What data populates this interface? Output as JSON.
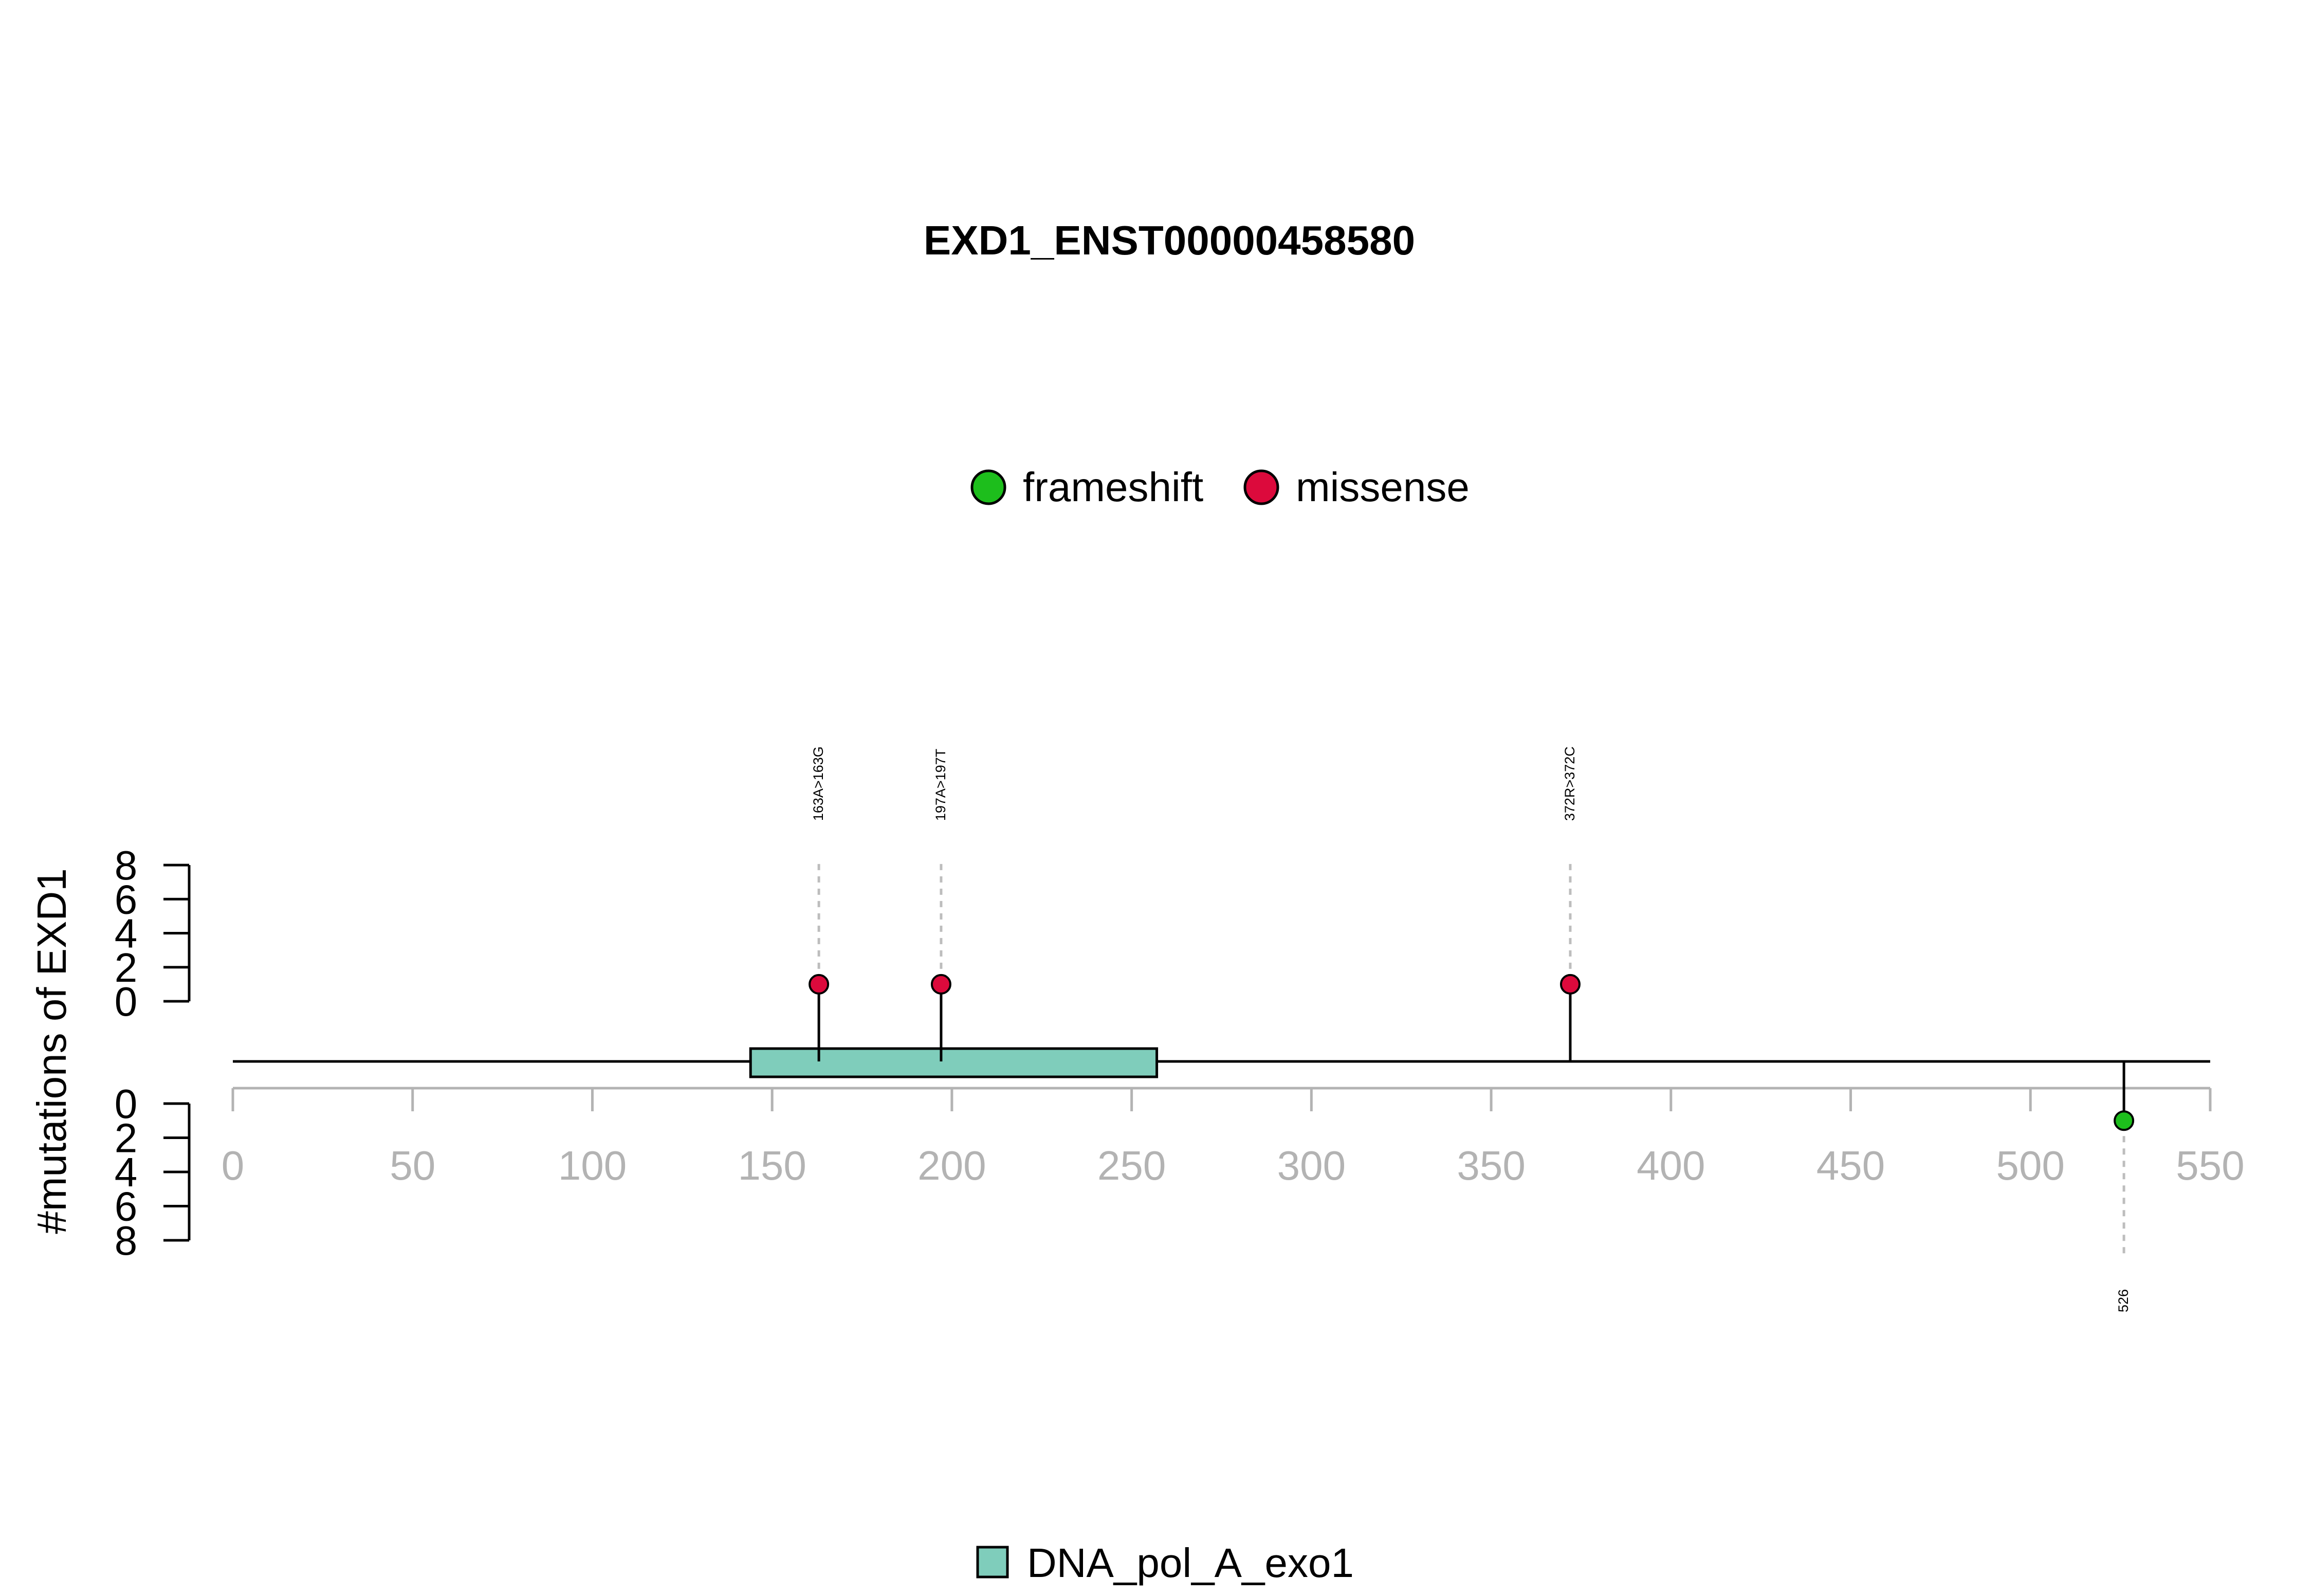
{
  "chart_data": {
    "type": "lollipop",
    "title": "EXD1_ENST00000458580",
    "ylabel": "#mutations of EXD1",
    "xlim": [
      0,
      550
    ],
    "x_ticks": [
      0,
      50,
      100,
      150,
      200,
      250,
      300,
      350,
      400,
      450,
      500,
      550
    ],
    "y_ticks": [
      0,
      2,
      4,
      6,
      8
    ],
    "ylim": [
      0,
      8
    ],
    "protein_length": 550,
    "legend_placement": "top-center",
    "mutation_types": [
      {
        "name": "frameshift",
        "color": "#1DBE1C"
      },
      {
        "name": "missense",
        "color": "#DC0A3C"
      }
    ],
    "domains": [
      {
        "name": "DNA_pol_A_exo1",
        "start": 144,
        "end": 257,
        "color": "#7FCDBB"
      }
    ],
    "mutations": [
      {
        "position": 163,
        "label": "163A>163G",
        "type": "missense",
        "count": 1,
        "side": "top"
      },
      {
        "position": 197,
        "label": "197A>197T",
        "type": "missense",
        "count": 1,
        "side": "top"
      },
      {
        "position": 372,
        "label": "372R>372C",
        "type": "missense",
        "count": 1,
        "side": "top"
      },
      {
        "position": 526,
        "label": "526",
        "type": "frameshift",
        "count": 1,
        "side": "bottom"
      }
    ]
  }
}
